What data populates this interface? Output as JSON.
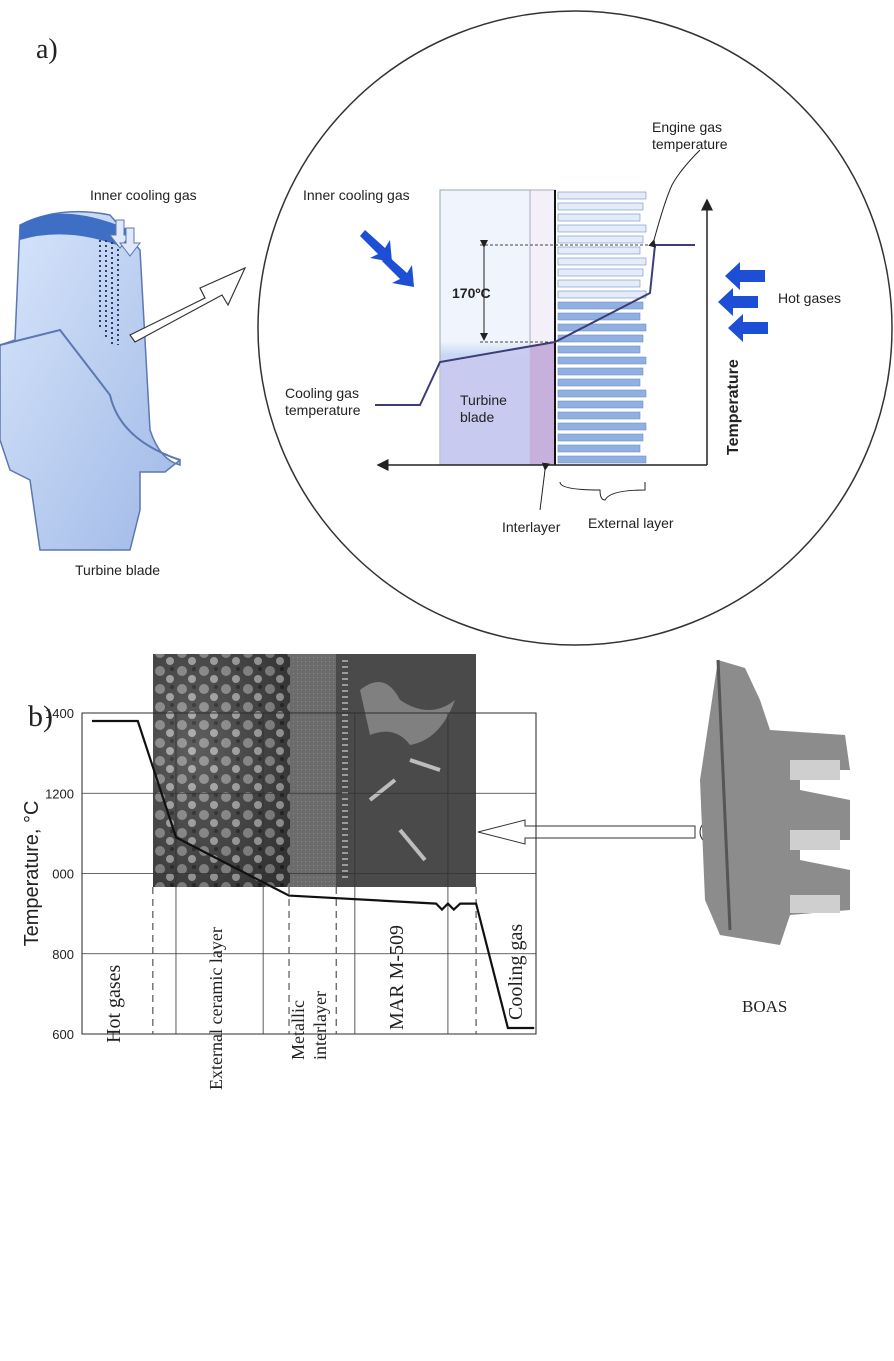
{
  "panel_a": {
    "label": "a)",
    "inner_cooling_gas_blade": "Inner cooling gas",
    "inner_cooling_gas": "Inner cooling gas",
    "engine_gas_temperature": [
      "Engine gas",
      "temperature"
    ],
    "delta": "170ºC",
    "hot_gases": "Hot gases",
    "temperature_axis": "Temperature",
    "cooling_gas_temperature": [
      "Cooling gas",
      "temperature"
    ],
    "turbine_blade_layer": [
      "Turbine",
      "blade"
    ],
    "interlayer": "Interlayer",
    "external_layer": "External layer",
    "caption": "Turbine blade"
  },
  "panel_b": {
    "label": "b)",
    "part": "BOAS"
  },
  "chart_data": {
    "type": "line",
    "ylabel": "Temperature, °C",
    "xlim": [
      0,
      100
    ],
    "ylim": [
      600,
      1400
    ],
    "yticks": [
      1400,
      1200,
      {
        "value": 1000,
        "label": "000"
      },
      800,
      600
    ],
    "xgrid": [
      20.7,
      39.9,
      60.1,
      80.6
    ],
    "boundaries": [
      15.6,
      45.6,
      56,
      86.8
    ],
    "x": [
      2.2,
      12.3,
      20.7,
      45.6,
      78,
      79.3,
      80.6,
      81.9,
      83.3,
      86.8,
      93.8,
      99.6
    ],
    "values": [
      1380,
      1380,
      1090,
      945,
      925,
      910,
      925,
      910,
      925,
      925,
      615,
      615
    ],
    "color": "#111",
    "grid": true,
    "annotations": [
      "Hot gases",
      "External ceramic layer",
      [
        "Metallic",
        "interlayer"
      ],
      "MAR M-509",
      "Cooling gas"
    ]
  }
}
